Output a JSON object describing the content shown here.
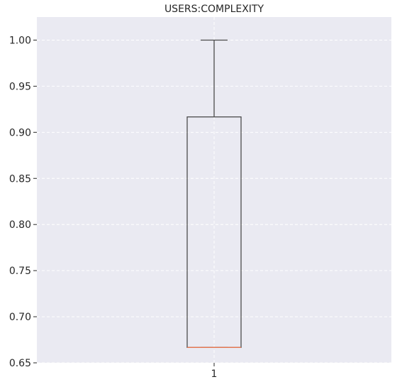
{
  "chart_data": {
    "type": "box",
    "title": "USERS:COMPLEXITY",
    "xlabel": "",
    "ylabel": "",
    "categories": [
      "1"
    ],
    "ylim": [
      0.65,
      1.0
    ],
    "yticks": [
      "0.65",
      "0.70",
      "0.75",
      "0.80",
      "0.85",
      "0.90",
      "0.95",
      "1.00"
    ],
    "grid": true,
    "boxes": [
      {
        "category": "1",
        "whisker_low": 0.6667,
        "q1": 0.6667,
        "median": 0.6667,
        "q3": 0.9167,
        "whisker_high": 1.0
      }
    ],
    "colors": {
      "plot_background": "#EAEAF2",
      "grid": "#FFFFFF",
      "box": "#4C4C4C",
      "median": "#E8764F",
      "text": "#262626"
    }
  }
}
